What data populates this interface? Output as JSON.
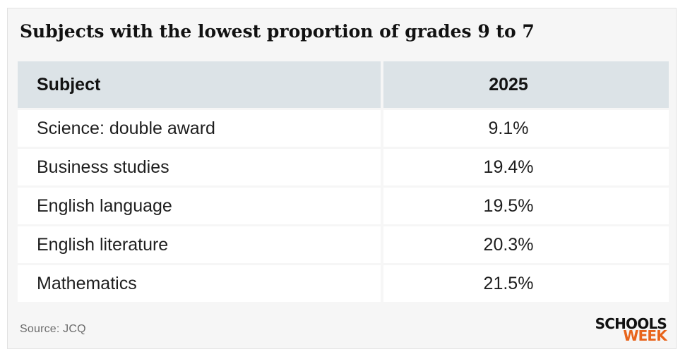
{
  "title": "Subjects with the lowest proportion of grades 9 to 7",
  "table": {
    "headers": [
      "Subject",
      "2025"
    ],
    "rows": [
      [
        "Science: double award",
        "9.1%"
      ],
      [
        "Business studies",
        "19.4%"
      ],
      [
        "English language",
        "19.5%"
      ],
      [
        "English literature",
        "20.3%"
      ],
      [
        "Mathematics",
        "21.5%"
      ]
    ]
  },
  "source": "Source: JCQ",
  "logo": {
    "line1": "SCHOOLS",
    "line2": "WEEK"
  },
  "colors": {
    "header_bg": "#dce3e7",
    "card_bg": "#f6f6f6",
    "logo_accent": "#e8641b"
  },
  "chart_data": {
    "type": "table",
    "title": "Subjects with the lowest proportion of grades 9 to 7",
    "columns": [
      "Subject",
      "2025"
    ],
    "categories": [
      "Science: double award",
      "Business studies",
      "English language",
      "English literature",
      "Mathematics"
    ],
    "values": [
      9.1,
      19.4,
      19.5,
      20.3,
      21.5
    ],
    "unit": "%",
    "source": "Source: JCQ"
  }
}
